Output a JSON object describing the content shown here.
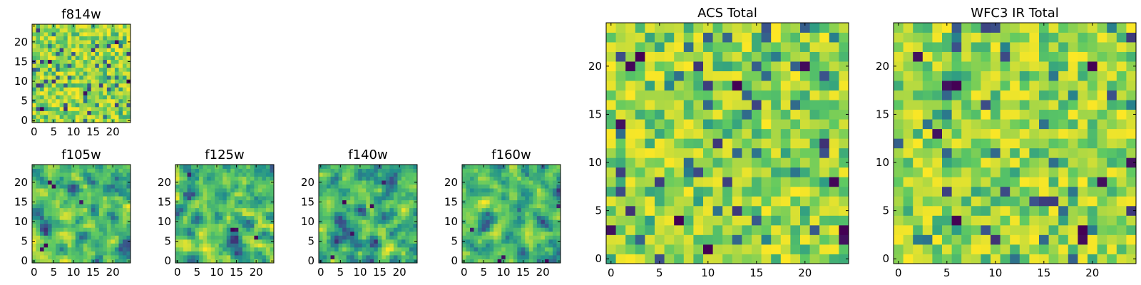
{
  "figure": {
    "colormap": "viridis",
    "colormap_stops": [
      "#440154",
      "#3b528b",
      "#21918c",
      "#5ec962",
      "#fde725"
    ]
  },
  "chart_data": [
    {
      "type": "heatmap",
      "title": "f814w",
      "xlim": [
        -0.5,
        24.5
      ],
      "ylim": [
        -0.5,
        24.5
      ],
      "xticks": [
        0,
        5,
        10,
        15,
        20
      ],
      "yticks": [
        0,
        5,
        10,
        15,
        20
      ],
      "tick_labels_x": [
        "0",
        "5",
        "10",
        "15",
        "20"
      ],
      "tick_labels_y": [
        "0",
        "5",
        "10",
        "15",
        "20"
      ],
      "grid_size": [
        25,
        25
      ],
      "value_range": [
        0,
        1
      ],
      "pattern": "fine random noise, 25x25 grid, mostly green-yellow with scattered dark pixels"
    },
    {
      "type": "heatmap",
      "title": "f105w",
      "xlim": [
        -0.5,
        24.5
      ],
      "ylim": [
        -0.5,
        24.5
      ],
      "xticks": [
        0,
        5,
        10,
        15,
        20
      ],
      "yticks": [
        0,
        5,
        10,
        15,
        20
      ],
      "tick_labels_x": [
        "0",
        "5",
        "10",
        "15",
        "20"
      ],
      "tick_labels_y": [
        "0",
        "5",
        "10",
        "15",
        "20"
      ],
      "grid_size": [
        25,
        25
      ],
      "value_range": [
        0,
        1
      ],
      "pattern": "smoothed noise with dark blotches near lower-left"
    },
    {
      "type": "heatmap",
      "title": "f125w",
      "xlim": [
        -0.5,
        24.5
      ],
      "ylim": [
        -0.5,
        24.5
      ],
      "xticks": [
        0,
        5,
        10,
        15,
        20
      ],
      "yticks": [
        0,
        5,
        10,
        15,
        20
      ],
      "tick_labels_x": [
        "0",
        "5",
        "10",
        "15",
        "20"
      ],
      "tick_labels_y": [
        "0",
        "5",
        "10",
        "15",
        "20"
      ],
      "grid_size": [
        25,
        25
      ],
      "value_range": [
        0,
        1
      ],
      "pattern": "smoothed noise with dark pixels near lower-right"
    },
    {
      "type": "heatmap",
      "title": "f140w",
      "xlim": [
        -0.5,
        24.5
      ],
      "ylim": [
        -0.5,
        24.5
      ],
      "xticks": [
        0,
        5,
        10,
        15,
        20
      ],
      "yticks": [
        0,
        5,
        10,
        15,
        20
      ],
      "tick_labels_x": [
        "0",
        "5",
        "10",
        "15",
        "20"
      ],
      "tick_labels_y": [
        "0",
        "5",
        "10",
        "15",
        "20"
      ],
      "grid_size": [
        25,
        25
      ],
      "value_range": [
        0,
        1
      ],
      "pattern": "smoothed noise with scattered dark spots"
    },
    {
      "type": "heatmap",
      "title": "f160w",
      "xlim": [
        -0.5,
        24.5
      ],
      "ylim": [
        -0.5,
        24.5
      ],
      "xticks": [
        0,
        5,
        10,
        15,
        20
      ],
      "yticks": [
        0,
        5,
        10,
        15,
        20
      ],
      "tick_labels_x": [
        "0",
        "5",
        "10",
        "15",
        "20"
      ],
      "tick_labels_y": [
        "0",
        "5",
        "10",
        "15",
        "20"
      ],
      "grid_size": [
        25,
        25
      ],
      "value_range": [
        0,
        1
      ],
      "pattern": "smoothed noise with dark clusters along the bottom edge"
    },
    {
      "type": "heatmap",
      "title": "ACS Total",
      "xlim": [
        -0.5,
        24.5
      ],
      "ylim": [
        -0.5,
        24.5
      ],
      "xticks": [
        0,
        5,
        10,
        15,
        20
      ],
      "yticks": [
        0,
        5,
        10,
        15,
        20
      ],
      "tick_labels_x": [
        "0",
        "5",
        "10",
        "15",
        "20"
      ],
      "tick_labels_y": [
        "0",
        "5",
        "10",
        "15",
        "20"
      ],
      "grid_size": [
        25,
        25
      ],
      "value_range": [
        0,
        1
      ],
      "pattern": "random noise, mostly green-yellow with a few dark purple pixels"
    },
    {
      "type": "heatmap",
      "title": "WFC3 IR Total",
      "xlim": [
        -0.5,
        24.5
      ],
      "ylim": [
        -0.5,
        24.5
      ],
      "xticks": [
        0,
        5,
        10,
        15,
        20
      ],
      "yticks": [
        0,
        5,
        10,
        15,
        20
      ],
      "tick_labels_x": [
        "0",
        "5",
        "10",
        "15",
        "20"
      ],
      "tick_labels_y": [
        "0",
        "5",
        "10",
        "15",
        "20"
      ],
      "grid_size": [
        25,
        25
      ],
      "value_range": [
        0,
        1
      ],
      "pattern": "random noise, mostly green-yellow with a few dark purple pixels"
    }
  ]
}
